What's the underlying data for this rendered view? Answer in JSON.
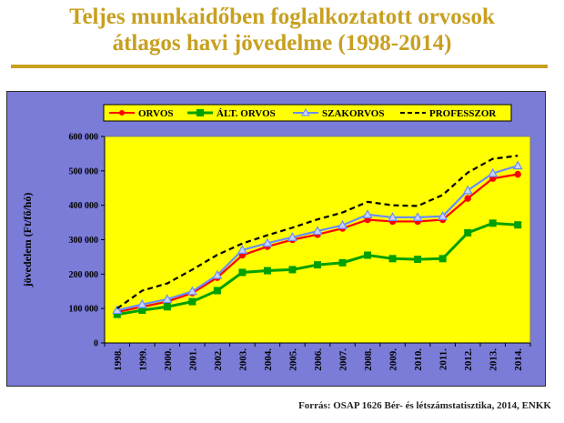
{
  "slide": {
    "title_line1": "Teljes munkaidőben foglalkoztatott orvosok",
    "title_line2": "átlagos havi jövedelme (1998-2014)",
    "source": "Forrás: OSAP 1626 Bér- és létszámstatisztika, 2014, ENKK"
  },
  "colors": {
    "title": "#c8a020",
    "frame_bg": "#7b7bd8",
    "plot_bg": "#ffff00"
  },
  "chart_data": {
    "type": "line",
    "title": "",
    "xlabel": "",
    "ylabel": "jövedelem (Ft/fő/hó)",
    "categories": [
      "1998.",
      "1999.",
      "2000.",
      "2001.",
      "2002.",
      "2003.",
      "2004.",
      "2005.",
      "2006.",
      "2007.",
      "2008.",
      "2009.",
      "2010.",
      "2011.",
      "2012.",
      "2013.",
      "2014."
    ],
    "ylim": [
      0,
      600000
    ],
    "yticks": [
      0,
      100000,
      200000,
      300000,
      400000,
      500000,
      600000
    ],
    "ytick_labels": [
      "0",
      "100 000",
      "200 000",
      "300 000",
      "400 000",
      "500 000",
      "600 000"
    ],
    "legend_position": "top",
    "grid": false,
    "series": [
      {
        "name": "ORVOS",
        "color": "#ff0000",
        "marker": "circle",
        "dash": false,
        "values": [
          90000,
          105000,
          120000,
          145000,
          190000,
          255000,
          280000,
          300000,
          315000,
          333000,
          358000,
          353000,
          353000,
          358000,
          420000,
          478000,
          490000
        ]
      },
      {
        "name": "ÁLT. ORVOS",
        "color": "#00a000",
        "marker": "square",
        "dash": false,
        "values": [
          83000,
          95000,
          105000,
          120000,
          152000,
          205000,
          210000,
          213000,
          227000,
          233000,
          255000,
          245000,
          243000,
          245000,
          320000,
          348000,
          343000
        ]
      },
      {
        "name": "SZAKORVOS",
        "color": "#6b8cff",
        "marker": "triangle",
        "dash": false,
        "values": [
          95000,
          112000,
          127000,
          150000,
          197000,
          270000,
          290000,
          307000,
          325000,
          342000,
          373000,
          365000,
          365000,
          368000,
          443000,
          493000,
          515000
        ]
      },
      {
        "name": "PROFESSZOR",
        "color": "#000000",
        "marker": "none",
        "dash": true,
        "values": [
          100000,
          152000,
          173000,
          213000,
          256000,
          289000,
          313000,
          335000,
          359000,
          379000,
          410000,
          400000,
          398000,
          430000,
          495000,
          535000,
          544000
        ]
      }
    ]
  }
}
